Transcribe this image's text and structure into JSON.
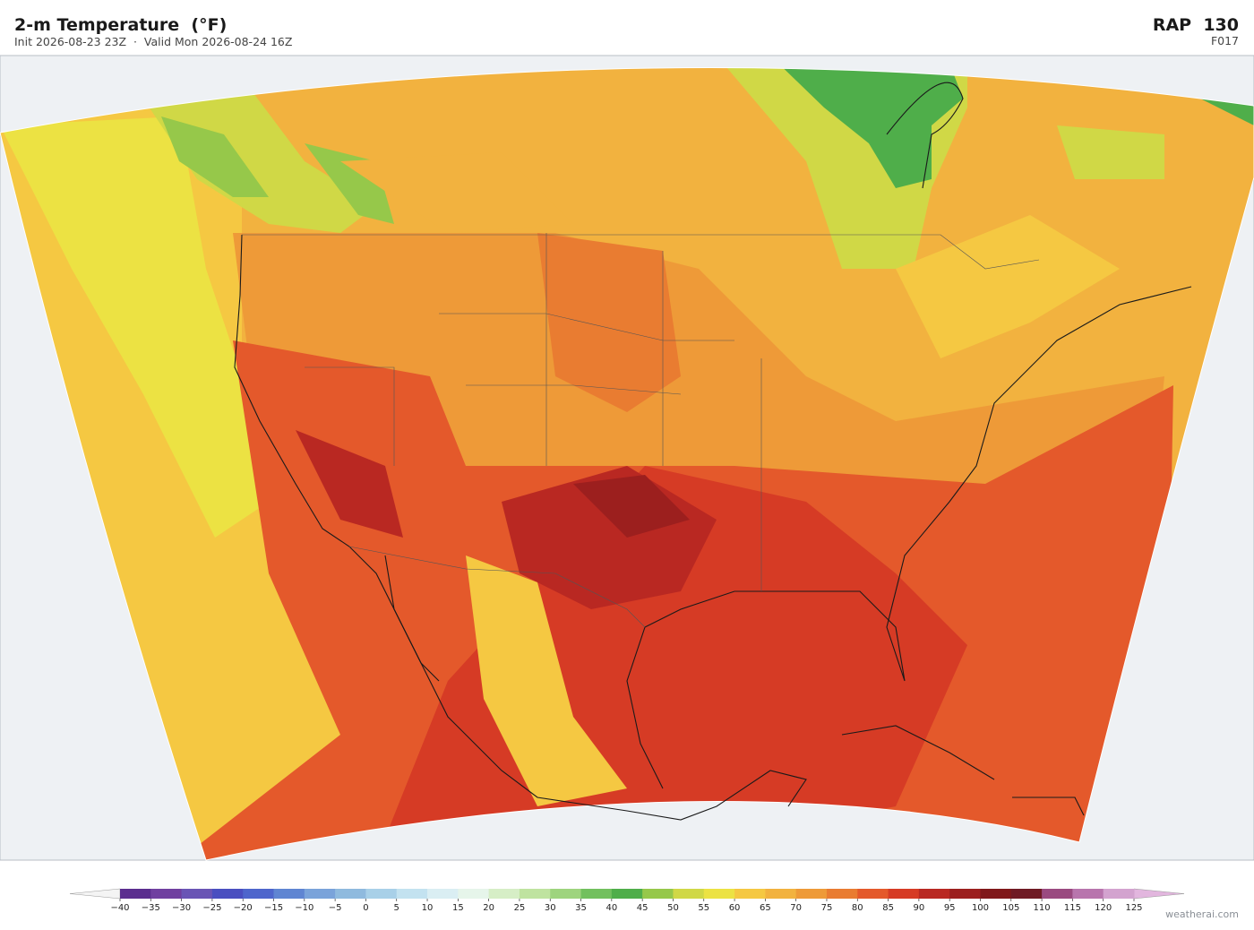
{
  "header": {
    "title": "2-m Temperature  (°F)",
    "subtitle": "Init 2026-08-23 23Z  ·  Valid Mon 2026-08-24 16Z",
    "model": "RAP  130",
    "forecast_hour": "F017"
  },
  "colorbar": {
    "ticks": [
      "−40",
      "−35",
      "−30",
      "−25",
      "−20",
      "−15",
      "−10",
      "−5",
      "0",
      "5",
      "10",
      "15",
      "20",
      "25",
      "30",
      "35",
      "40",
      "45",
      "50",
      "55",
      "60",
      "65",
      "70",
      "75",
      "80",
      "85",
      "90",
      "95",
      "100",
      "105",
      "110",
      "115",
      "120",
      "125"
    ],
    "colors": [
      "#5b2e8f",
      "#7040a0",
      "#6a55b5",
      "#4a4fc0",
      "#4e66cc",
      "#5f85d2",
      "#7aa3da",
      "#8fbade",
      "#a8d0e8",
      "#c3e2f0",
      "#daeef3",
      "#e6f5ea",
      "#d6eec6",
      "#bfe3a0",
      "#9ed47e",
      "#72c05e",
      "#4fae4a",
      "#96c84a",
      "#d0d846",
      "#ece243",
      "#f5c842",
      "#f2b23f",
      "#ee9a38",
      "#e97c31",
      "#e4592b",
      "#d63b25",
      "#b92822",
      "#9c1f1e",
      "#80181a",
      "#6f1a24",
      "#9a4a80",
      "#b875ad",
      "#d3a3cf"
    ],
    "under_color": "#f4f4f4",
    "over_color": "#e2b6de"
  },
  "footer": {
    "watermark": "weatherai.com"
  }
}
